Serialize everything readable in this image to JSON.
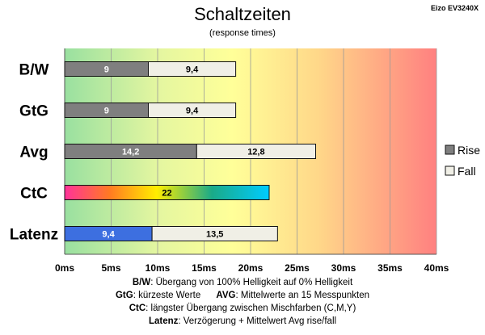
{
  "chart_data": {
    "type": "bar",
    "orientation": "horizontal",
    "stacked": true,
    "title": "Schaltzeiten",
    "subtitle": "(response times)",
    "corner_label": "Eizo EV3240X",
    "categories": [
      "B/W",
      "GtG",
      "Avg",
      "CtC",
      "Latenz"
    ],
    "series": [
      {
        "name": "Rise",
        "values": [
          9,
          9,
          14.2,
          22,
          9.4
        ],
        "labels": [
          "9",
          "9",
          "14,2",
          "22",
          "9,4"
        ]
      },
      {
        "name": "Fall",
        "values": [
          9.4,
          9.4,
          12.8,
          0,
          13.5
        ],
        "labels": [
          "9,4",
          "9,4",
          "12,8",
          "",
          "13,5"
        ]
      }
    ],
    "xlim": [
      0,
      40
    ],
    "x_ticks": [
      "0ms",
      "5ms",
      "10ms",
      "15ms",
      "20ms",
      "25ms",
      "30ms",
      "35ms",
      "40ms"
    ],
    "grid": true,
    "legend_position": "right",
    "colors": {
      "rise": "#7f7f7f",
      "fall": "#f0efe6",
      "latenz_rise": "#3d6fe0"
    }
  },
  "notes": [
    {
      "key": "B/W",
      "text": ":  Übergang von 100% Helligkeit auf 0% Helligkeit"
    },
    {
      "key": "GtG",
      "text": ": kürzeste  Werte",
      "key2": "AVG",
      "text2": ": Mittelwerte  an 15 Messpunkten"
    },
    {
      "key": "CtC",
      "text": ": längster Übergang  zwischen Mischfarben (C,M,Y)"
    },
    {
      "key": "Latenz",
      "text": ": Verzögerung  + Mittelwert  Avg rise/fall"
    }
  ]
}
